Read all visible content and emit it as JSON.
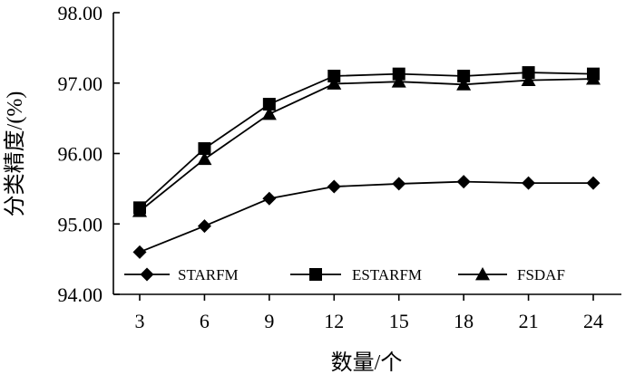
{
  "chart_data": {
    "type": "line",
    "title": "",
    "xlabel": "数量/个",
    "ylabel": "分类精度/(%)",
    "categories": [
      "3",
      "6",
      "9",
      "12",
      "15",
      "18",
      "21",
      "24"
    ],
    "ylim": [
      94.0,
      98.0
    ],
    "yticks": [
      "94.00",
      "95.00",
      "96.00",
      "97.00",
      "98.00"
    ],
    "grid": false,
    "legend_position": "bottom",
    "series": [
      {
        "name": "STARFM",
        "marker": "diamond",
        "values": [
          94.6,
          94.97,
          95.36,
          95.53,
          95.57,
          95.6,
          95.58,
          95.58
        ]
      },
      {
        "name": "ESTARFM",
        "marker": "square",
        "values": [
          95.23,
          96.07,
          96.7,
          97.1,
          97.13,
          97.1,
          97.15,
          97.13
        ]
      },
      {
        "name": "FSDAF",
        "marker": "triangle",
        "values": [
          95.18,
          95.92,
          96.56,
          96.99,
          97.02,
          96.98,
          97.04,
          97.06
        ]
      }
    ],
    "colors": {
      "line": "#000000",
      "background": "#ffffff"
    }
  }
}
